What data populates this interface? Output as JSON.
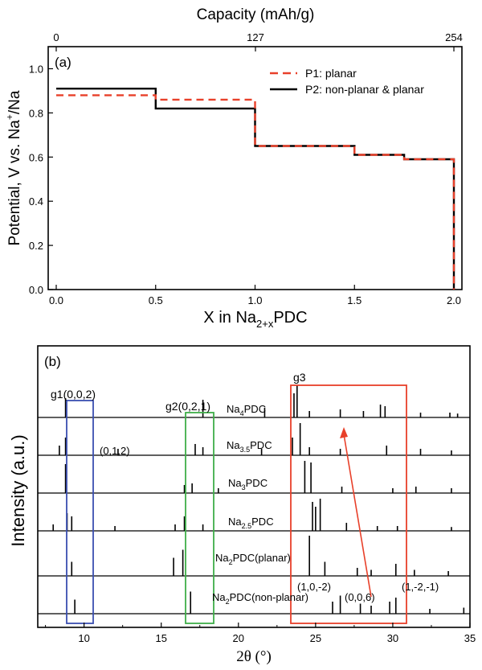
{
  "chart_data": [
    {
      "panel": "(a)",
      "type": "line",
      "top_axis_label": "Capacity (mAh/g)",
      "top_ticks": [
        "0",
        "127",
        "254"
      ],
      "xlabel_main": "X in Na",
      "xlabel_sub": "2+x",
      "xlabel_tail": "PDC",
      "ylabel_main": "Potential, V vs. Na",
      "ylabel_sup": "+",
      "ylabel_tail": "/Na",
      "xlim": [
        0,
        2.05
      ],
      "ylim": [
        0,
        1.1
      ],
      "x_ticks": [
        "0.0",
        "0.5",
        "1.0",
        "1.5",
        "2.0"
      ],
      "y_ticks": [
        "0.0",
        "0.2",
        "0.4",
        "0.6",
        "0.8",
        "1.0"
      ],
      "legend_position": "top-right",
      "series": [
        {
          "name": "P1: planar",
          "color": "#e8402a",
          "dash": "dashed",
          "x": [
            0,
            0.5,
            0.5,
            1.0,
            1.0,
            1.5,
            1.5,
            1.75,
            1.75,
            2.0,
            2.0
          ],
          "y": [
            0.88,
            0.88,
            0.86,
            0.86,
            0.65,
            0.65,
            0.61,
            0.61,
            0.59,
            0.59,
            0.0
          ]
        },
        {
          "name": "P2: non-planar & planar",
          "color": "#000000",
          "dash": "solid",
          "x": [
            0,
            0.5,
            0.5,
            1.0,
            1.0,
            1.5,
            1.5,
            1.75,
            1.75,
            2.0,
            2.0
          ],
          "y": [
            0.91,
            0.91,
            0.82,
            0.82,
            0.65,
            0.65,
            0.61,
            0.61,
            0.59,
            0.59,
            0.0
          ]
        }
      ]
    },
    {
      "panel": "(b)",
      "type": "line",
      "xlabel": "2θ (°)",
      "ylabel": "Intensity (a.u.)",
      "xlim": [
        7,
        35
      ],
      "x_ticks": [
        "10",
        "15",
        "20",
        "25",
        "30",
        "35"
      ],
      "patterns": [
        {
          "label_main": "Na",
          "label_sub": "4",
          "label_tail": "PDC",
          "peaks": [
            [
              8.8,
              0.6
            ],
            [
              17.7,
              0.55
            ],
            [
              21.7,
              0.3
            ],
            [
              23.6,
              0.75
            ],
            [
              23.8,
              1.0
            ],
            [
              24.6,
              0.2
            ],
            [
              26.6,
              0.25
            ],
            [
              28.1,
              0.2
            ],
            [
              29.2,
              0.4
            ],
            [
              29.5,
              0.35
            ],
            [
              31.8,
              0.15
            ],
            [
              33.7,
              0.15
            ],
            [
              34.2,
              0.12
            ]
          ]
        },
        {
          "label_main": "Na",
          "label_sub": "3.5",
          "label_tail": "PDC",
          "peaks": [
            [
              8.4,
              0.3
            ],
            [
              8.8,
              0.55
            ],
            [
              12.2,
              0.2
            ],
            [
              17.2,
              0.35
            ],
            [
              17.7,
              0.25
            ],
            [
              21.5,
              0.2
            ],
            [
              23.5,
              0.55
            ],
            [
              24.0,
              1.0
            ],
            [
              24.6,
              0.25
            ],
            [
              26.6,
              0.2
            ],
            [
              29.6,
              0.3
            ],
            [
              31.8,
              0.2
            ],
            [
              33.8,
              0.15
            ]
          ]
        },
        {
          "label_main": "Na",
          "label_sub": "3",
          "label_tail": "PDC",
          "peaks": [
            [
              8.8,
              0.9
            ],
            [
              16.5,
              0.25
            ],
            [
              17.0,
              0.3
            ],
            [
              18.7,
              0.15
            ],
            [
              24.3,
              1.0
            ],
            [
              24.7,
              0.95
            ],
            [
              26.7,
              0.2
            ],
            [
              30.0,
              0.15
            ],
            [
              31.5,
              0.2
            ],
            [
              33.8,
              0.15
            ]
          ]
        },
        {
          "label_main": "Na",
          "label_sub": "2.5",
          "label_tail": "PDC",
          "peaks": [
            [
              8.0,
              0.2
            ],
            [
              8.9,
              0.55
            ],
            [
              9.2,
              0.45
            ],
            [
              12.0,
              0.15
            ],
            [
              15.9,
              0.2
            ],
            [
              16.5,
              0.45
            ],
            [
              17.7,
              0.2
            ],
            [
              24.8,
              0.9
            ],
            [
              25.0,
              0.75
            ],
            [
              25.3,
              1.0
            ],
            [
              27.0,
              0.25
            ],
            [
              29.0,
              0.15
            ],
            [
              30.3,
              0.15
            ],
            [
              33.8,
              0.12
            ]
          ]
        },
        {
          "label_main": "Na",
          "label_sub": "2",
          "label_tail": "PDC(planar)",
          "peaks": [
            [
              9.2,
              0.35
            ],
            [
              15.8,
              0.45
            ],
            [
              16.4,
              0.65
            ],
            [
              24.6,
              1.0
            ],
            [
              25.6,
              0.35
            ],
            [
              27.7,
              0.2
            ],
            [
              28.6,
              0.15
            ],
            [
              30.2,
              0.3
            ],
            [
              31.4,
              0.15
            ],
            [
              33.6,
              0.12
            ]
          ]
        },
        {
          "label_main": "Na",
          "label_sub": "2",
          "label_tail": "PDC(non-planar)",
          "peaks": [
            [
              9.4,
              0.35
            ],
            [
              16.9,
              0.55
            ],
            [
              26.1,
              0.3
            ],
            [
              26.6,
              0.45
            ],
            [
              27.9,
              0.25
            ],
            [
              28.6,
              0.2
            ],
            [
              29.8,
              0.3
            ],
            [
              30.2,
              0.4
            ],
            [
              32.4,
              0.12
            ],
            [
              34.6,
              0.15
            ]
          ]
        }
      ],
      "boxes": [
        {
          "color": "#3a4fb0",
          "label": "g1(0,0,2)",
          "x_range": [
            8.6,
            10.2
          ]
        },
        {
          "color": "#3fae49",
          "label": "g2(0,2,1)",
          "x_range": [
            16.2,
            17.9
          ]
        },
        {
          "color": "#e8402a",
          "label": "g3",
          "x_range": [
            23.0,
            30.6
          ]
        }
      ],
      "annotations": [
        "(0,1,2)",
        "(1,0,-2)",
        "(0,0,6)",
        "(1,-2,-1)"
      ]
    }
  ]
}
